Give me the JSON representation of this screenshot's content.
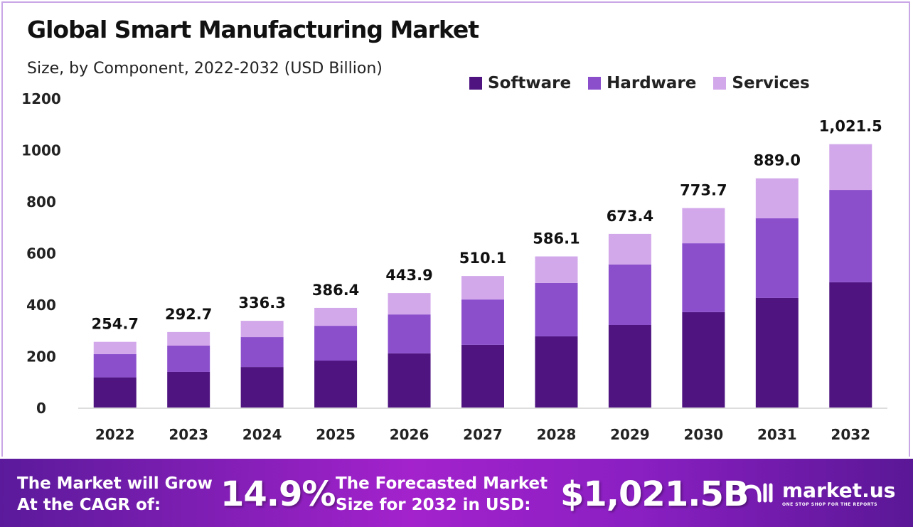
{
  "chart_data": {
    "type": "bar",
    "stacked": true,
    "title": "Global Smart Manufacturing Market",
    "subtitle": "Size, by Component, 2022-2032 (USD Billion)",
    "categories": [
      "2022",
      "2023",
      "2024",
      "2025",
      "2026",
      "2027",
      "2028",
      "2029",
      "2030",
      "2031",
      "2032"
    ],
    "series": [
      {
        "name": "Software",
        "color": "#4f1480",
        "values": [
          117,
          138,
          157,
          182,
          210,
          243,
          276,
          320,
          370,
          425,
          486
        ]
      },
      {
        "name": "Hardware",
        "color": "#8b4fcc",
        "values": [
          90,
          102,
          116,
          135,
          151,
          176,
          207,
          235,
          267,
          309,
          358
        ]
      },
      {
        "name": "Services",
        "color": "#d3a8eb",
        "values": [
          47.7,
          52.7,
          63.3,
          69.4,
          82.9,
          91.1,
          103.1,
          118.4,
          136.7,
          155.0,
          177.5
        ]
      }
    ],
    "totals_labels": [
      "254.7",
      "292.7",
      "336.3",
      "386.4",
      "443.9",
      "510.1",
      "586.1",
      "673.4",
      "773.7",
      "889.0",
      "1,021.5"
    ],
    "yticks": [
      "0",
      "200",
      "400",
      "600",
      "800",
      "1000",
      "1200"
    ],
    "ylim": [
      0,
      1200
    ],
    "grid": false,
    "legend_position": "top-right"
  },
  "footer": {
    "cagr_line1": "The Market will Grow",
    "cagr_line2": "At the CAGR of:",
    "cagr_value": "14.9%",
    "forecast_line1": "The Forecasted Market",
    "forecast_line2": "Size for 2032 in USD:",
    "forecast_value": "$1,021.5B",
    "logo_text": "market.us",
    "logo_tagline": "ONE STOP SHOP FOR THE REPORTS"
  }
}
